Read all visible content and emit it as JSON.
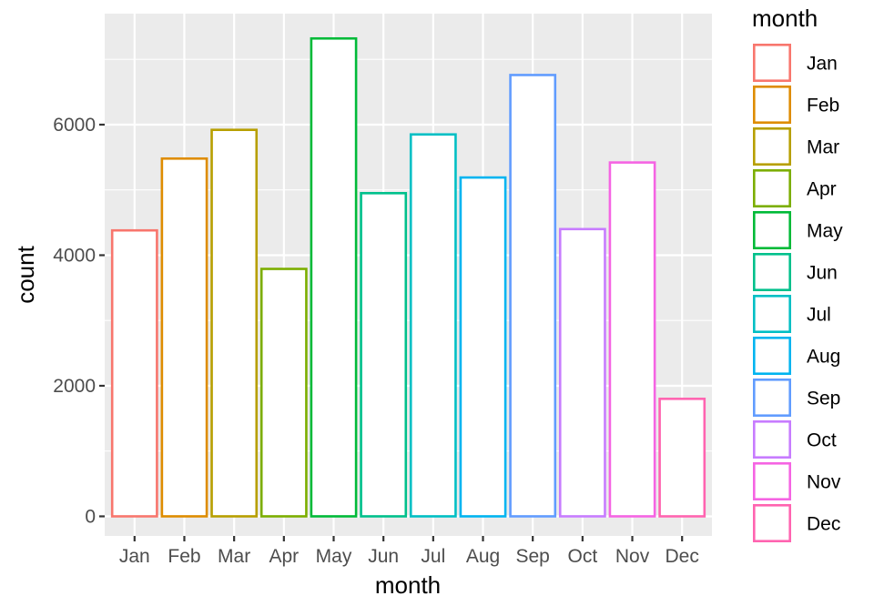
{
  "chart_data": {
    "type": "bar",
    "categories": [
      "Jan",
      "Feb",
      "Mar",
      "Apr",
      "May",
      "Jun",
      "Jul",
      "Aug",
      "Sep",
      "Oct",
      "Nov",
      "Dec"
    ],
    "values": [
      4380,
      5480,
      5920,
      3790,
      7320,
      4950,
      5850,
      5190,
      6760,
      4400,
      5420,
      1800
    ],
    "colors": [
      "#F8766D",
      "#DE8C00",
      "#B79F00",
      "#7CAE00",
      "#00BA38",
      "#00C08B",
      "#00BFC4",
      "#00B4F0",
      "#619CFF",
      "#C77CFF",
      "#F564E3",
      "#FF64B0"
    ],
    "xlabel": "month",
    "ylabel": "count",
    "ylim": [
      -300,
      7700
    ],
    "yticks": [
      0,
      2000,
      4000,
      6000
    ],
    "ytick_labels": [
      "0",
      "2000",
      "4000",
      "6000"
    ],
    "grid": true,
    "legend": {
      "title": "month",
      "position": "right",
      "entries": [
        "Jan",
        "Feb",
        "Mar",
        "Apr",
        "May",
        "Jun",
        "Jul",
        "Aug",
        "Sep",
        "Oct",
        "Nov",
        "Dec"
      ]
    },
    "fill": "white",
    "outline_by": "month"
  }
}
